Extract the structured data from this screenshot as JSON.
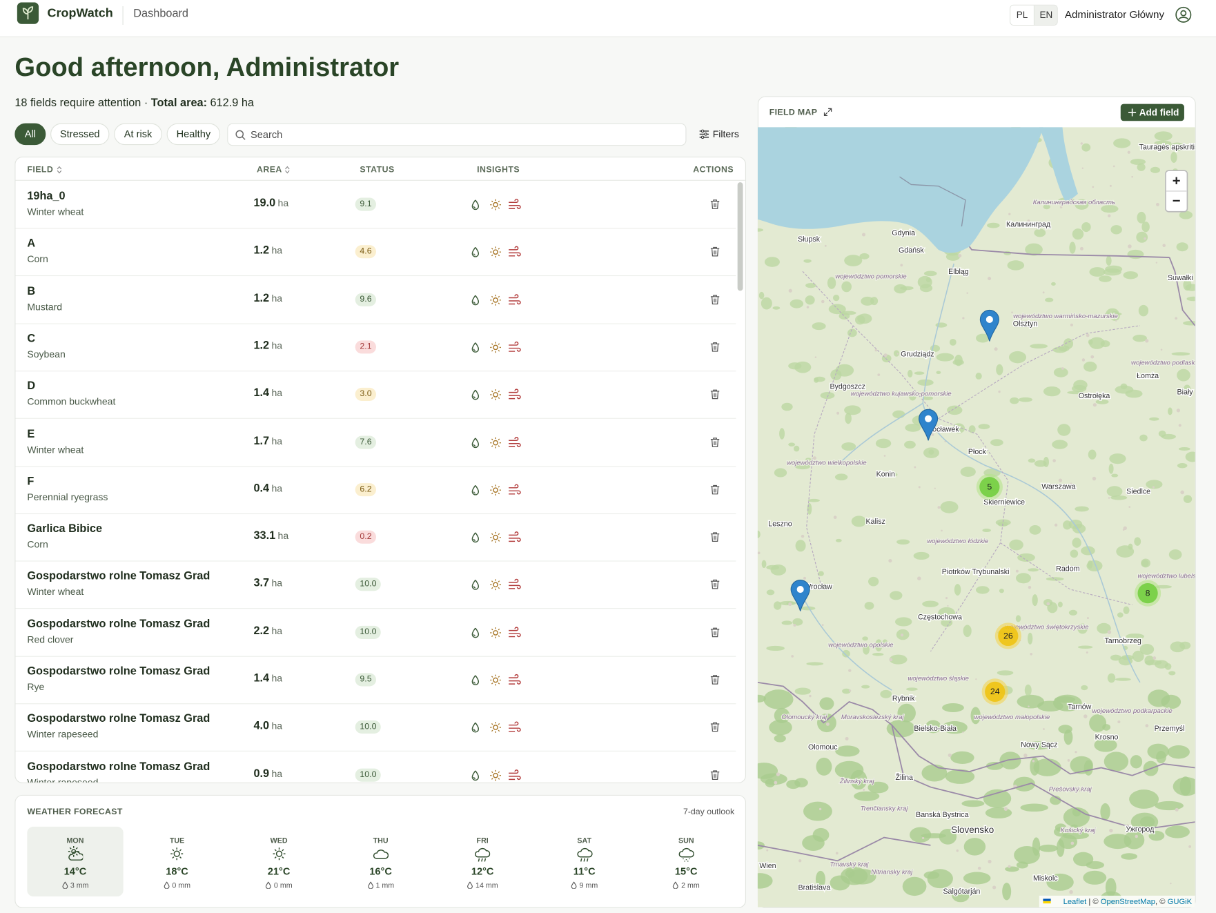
{
  "header": {
    "brand": "CropWatch",
    "nav": "Dashboard",
    "languages": [
      "PL",
      "EN"
    ],
    "active_language_index": 1,
    "user": "Administrator Główny"
  },
  "greeting": "Good afternoon, Administrator",
  "summary": {
    "attention": "18 fields require attention ·",
    "total_label": "Total area:",
    "total_value": "612.9 ha"
  },
  "filters": {
    "pills": [
      "All",
      "Stressed",
      "At risk",
      "Healthy"
    ],
    "active_index": 0,
    "search_placeholder": "Search",
    "filters_button": "Filters"
  },
  "table": {
    "columns": [
      "FIELD",
      "AREA",
      "STATUS",
      "INSIGHTS",
      "ACTIONS"
    ],
    "area_unit": "ha",
    "rows": [
      {
        "name": "19ha_0",
        "crop": "Winter wheat",
        "area": "19.0",
        "status": "9.1"
      },
      {
        "name": "A",
        "crop": "Corn",
        "area": "1.2",
        "status": "4.6"
      },
      {
        "name": "B",
        "crop": "Mustard",
        "area": "1.2",
        "status": "9.6"
      },
      {
        "name": "C",
        "crop": "Soybean",
        "area": "1.2",
        "status": "2.1"
      },
      {
        "name": "D",
        "crop": "Common buckwheat",
        "area": "1.4",
        "status": "3.0"
      },
      {
        "name": "E",
        "crop": "Winter wheat",
        "area": "1.7",
        "status": "7.6"
      },
      {
        "name": "F",
        "crop": "Perennial ryegrass",
        "area": "0.4",
        "status": "6.2"
      },
      {
        "name": "Garlica Bibice",
        "crop": "Corn",
        "area": "33.1",
        "status": "0.2"
      },
      {
        "name": "Gospodarstwo rolne Tomasz Grad",
        "crop": "Winter wheat",
        "area": "3.7",
        "status": "10.0"
      },
      {
        "name": "Gospodarstwo rolne Tomasz Grad",
        "crop": "Red clover",
        "area": "2.2",
        "status": "10.0"
      },
      {
        "name": "Gospodarstwo rolne Tomasz Grad",
        "crop": "Rye",
        "area": "1.4",
        "status": "9.5"
      },
      {
        "name": "Gospodarstwo rolne Tomasz Grad",
        "crop": "Winter rapeseed",
        "area": "4.0",
        "status": "10.0"
      },
      {
        "name": "Gospodarstwo rolne Tomasz Grad",
        "crop": "Winter rapeseed",
        "area": "0.9",
        "status": "10.0"
      }
    ]
  },
  "weather": {
    "title": "WEATHER FORECAST",
    "outlook": "7-day outlook",
    "selected_index": 0,
    "days": [
      {
        "day": "MON",
        "temp": "14°C",
        "precip": "3 mm",
        "icon": "partly-cloudy"
      },
      {
        "day": "TUE",
        "temp": "18°C",
        "precip": "0 mm",
        "icon": "sunny"
      },
      {
        "day": "WED",
        "temp": "21°C",
        "precip": "0 mm",
        "icon": "sunny"
      },
      {
        "day": "THU",
        "temp": "16°C",
        "precip": "1 mm",
        "icon": "cloudy"
      },
      {
        "day": "FRI",
        "temp": "12°C",
        "precip": "14 mm",
        "icon": "rain"
      },
      {
        "day": "SAT",
        "temp": "11°C",
        "precip": "9 mm",
        "icon": "rain"
      },
      {
        "day": "SUN",
        "temp": "15°C",
        "precip": "2 mm",
        "icon": "drizzle"
      }
    ]
  },
  "map": {
    "title": "FIELD MAP",
    "add_button": "Add field",
    "zoom_in": "+",
    "zoom_out": "−",
    "cities": [
      "Gdynia",
      "Gdańsk",
      "Słupsk",
      "Elbląg",
      "Калининград",
      "Olsztyn",
      "Grudziądz",
      "Bydgoszcz",
      "Włocławek",
      "Płock",
      "Konin",
      "Warszawa",
      "Skierniewice",
      "Siedlce",
      "Łomża",
      "Ostrołęka",
      "Suwałki",
      "Kalisz",
      "Leszno",
      "Piotrków Trybunalski",
      "Radom",
      "Wrocław",
      "Częstochowa",
      "Tarnobrzeg",
      "Rybnik",
      "Tarnów",
      "Bielsko-Biała",
      "Olomouc",
      "Nowy Sącz",
      "Krosno",
      "Przemyśl",
      "Žilina",
      "Slovensko",
      "Banská Bystrica",
      "Ужгород",
      "Miskolc",
      "Salgótarján",
      "Wien",
      "Bratislava",
      "Tauragės apskritis",
      "Biały"
    ],
    "regions": [
      "Калининградская область",
      "województwo pomorskie",
      "województwo warmińsko-mazurskie",
      "województwo podlaskie",
      "województwo kujawsko-pomorskie",
      "województwo wielkopolskie",
      "województwo łódzkie",
      "województwo lubelskie",
      "województwo świętokrzyskie",
      "województwo opolskie",
      "województwo śląskie",
      "województwo małopolskie",
      "województwo podkarpackie",
      "Olomoucký kraj",
      "Moravskoslezský kraj",
      "Žilinský kraj",
      "Trenčiansky kraj",
      "Prešovský kraj",
      "Košický kraj",
      "Trnavský kraj",
      "Nitriansky kraj"
    ],
    "clusters": [
      5,
      26,
      24,
      8
    ],
    "pins": 3,
    "attribution": [
      "Leaflet",
      " | © ",
      "OpenStreetMap",
      ", © ",
      "GUGiK"
    ]
  }
}
